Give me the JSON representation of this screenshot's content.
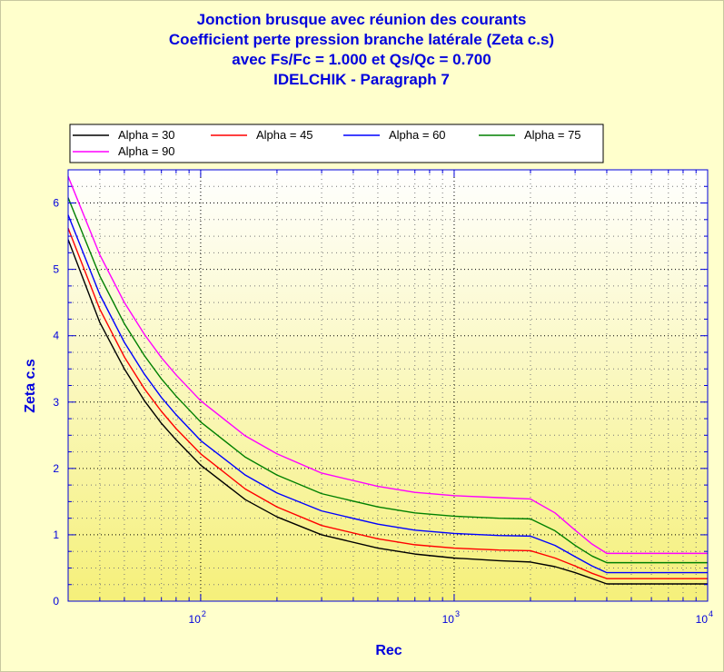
{
  "chart_data": {
    "type": "line",
    "title_lines": [
      "Jonction brusque avec réunion des courants",
      "Coefficient perte pression branche latérale (Zeta c.s)",
      "avec Fs/Fc = 1.000 et  Qs/Qc = 0.700",
      "IDELCHIK - Paragraph 7"
    ],
    "xlabel": "Rec",
    "ylabel": "Zeta c.s",
    "xscale": "log",
    "xlim": [
      30,
      10000
    ],
    "ylim": [
      0,
      6.5
    ],
    "yticks": [
      0,
      1,
      2,
      3,
      4,
      5,
      6
    ],
    "xticks": [
      {
        "value": 100,
        "base": "10",
        "exp": "2"
      },
      {
        "value": 1000,
        "base": "10",
        "exp": "3"
      },
      {
        "value": 10000,
        "base": "10",
        "exp": "4"
      }
    ],
    "grid": true,
    "legend_position": "top",
    "colors": {
      "plot_background_top": "#ffffff",
      "plot_background_bottom": "#f5f07a",
      "frame_background": "#ffffcc",
      "text": "#0000dd"
    },
    "series": [
      {
        "name": "Alpha = 30",
        "color": "#000000",
        "x": [
          30,
          40,
          50,
          60,
          70,
          80,
          100,
          150,
          200,
          300,
          500,
          700,
          1000,
          1500,
          2000,
          2500,
          3000,
          3500,
          4000,
          5000,
          10000
        ],
        "y": [
          5.45,
          4.2,
          3.5,
          3.02,
          2.68,
          2.43,
          2.05,
          1.53,
          1.27,
          1.0,
          0.8,
          0.71,
          0.65,
          0.61,
          0.59,
          0.52,
          0.43,
          0.34,
          0.26,
          0.26,
          0.26
        ]
      },
      {
        "name": "Alpha = 45",
        "color": "#ff0000",
        "x": [
          30,
          40,
          50,
          60,
          70,
          80,
          100,
          150,
          200,
          300,
          500,
          700,
          1000,
          1500,
          2000,
          2500,
          3000,
          3500,
          4000,
          5000,
          10000
        ],
        "y": [
          5.62,
          4.4,
          3.68,
          3.2,
          2.86,
          2.6,
          2.22,
          1.69,
          1.42,
          1.14,
          0.94,
          0.85,
          0.8,
          0.77,
          0.76,
          0.65,
          0.53,
          0.42,
          0.34,
          0.34,
          0.34
        ]
      },
      {
        "name": "Alpha = 60",
        "color": "#0000ff",
        "x": [
          30,
          40,
          50,
          60,
          70,
          80,
          100,
          150,
          200,
          300,
          500,
          700,
          1000,
          1500,
          2000,
          2500,
          3000,
          3500,
          4000,
          5000,
          10000
        ],
        "y": [
          5.82,
          4.62,
          3.9,
          3.42,
          3.07,
          2.81,
          2.42,
          1.9,
          1.63,
          1.36,
          1.16,
          1.07,
          1.02,
          0.99,
          0.98,
          0.84,
          0.67,
          0.53,
          0.43,
          0.43,
          0.43
        ]
      },
      {
        "name": "Alpha = 75",
        "color": "#008000",
        "x": [
          30,
          40,
          50,
          60,
          70,
          80,
          100,
          150,
          200,
          300,
          500,
          700,
          1000,
          1500,
          2000,
          2500,
          3000,
          3500,
          4000,
          5000,
          10000
        ],
        "y": [
          6.08,
          4.9,
          4.18,
          3.7,
          3.35,
          3.09,
          2.7,
          2.17,
          1.9,
          1.62,
          1.42,
          1.33,
          1.28,
          1.25,
          1.24,
          1.06,
          0.84,
          0.68,
          0.58,
          0.58,
          0.58
        ]
      },
      {
        "name": "Alpha = 90",
        "color": "#ff00ff",
        "x": [
          30,
          40,
          50,
          60,
          70,
          80,
          100,
          150,
          200,
          300,
          500,
          700,
          1000,
          1500,
          2000,
          2500,
          3000,
          3500,
          4000,
          5000,
          10000
        ],
        "y": [
          6.4,
          5.22,
          4.5,
          4.02,
          3.67,
          3.41,
          3.02,
          2.49,
          2.22,
          1.93,
          1.73,
          1.64,
          1.59,
          1.56,
          1.54,
          1.33,
          1.07,
          0.86,
          0.72,
          0.72,
          0.72
        ]
      }
    ]
  }
}
